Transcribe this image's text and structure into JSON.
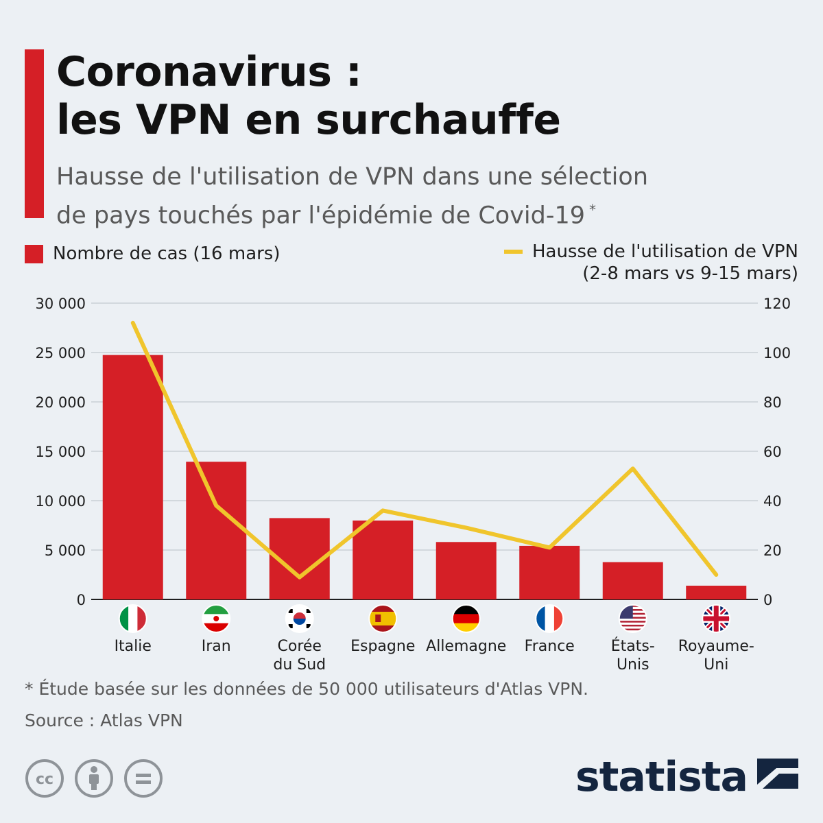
{
  "header": {
    "title_line1": "Coronavirus :",
    "title_line2": "les VPN en surchauffe",
    "subtitle_line1": "Hausse de l'utilisation de VPN dans une sélection",
    "subtitle_line2": "de pays touchés par l'épidémie de Covid-19",
    "subtitle_marker": "*"
  },
  "legend": {
    "bars_label": "Nombre de cas (16 mars)",
    "line_label": "Hausse de l'utilisation de VPN",
    "line_sublabel": "(2-8 mars vs 9-15 mars)"
  },
  "colors": {
    "bars": "#d51f26",
    "line": "#f0c52c",
    "accent": "#d51f26",
    "grid": "#b9bfc6",
    "brand": "#14253f"
  },
  "chart_data": {
    "type": "bar",
    "categories": [
      [
        "Italie"
      ],
      [
        "Iran"
      ],
      [
        "Corée",
        "du Sud"
      ],
      [
        "Espagne"
      ],
      [
        "Allemagne"
      ],
      [
        "France"
      ],
      [
        "États-",
        "Unis"
      ],
      [
        "Royaume-",
        "Uni"
      ]
    ],
    "flags": [
      "italy-flag-icon",
      "iran-flag-icon",
      "south-korea-flag-icon",
      "spain-flag-icon",
      "germany-flag-icon",
      "france-flag-icon",
      "usa-flag-icon",
      "uk-flag-icon"
    ],
    "series": [
      {
        "name": "Nombre de cas (16 mars)",
        "type": "bar",
        "axis": "left",
        "values": [
          24747,
          13938,
          8236,
          7988,
          5813,
          5423,
          3774,
          1391
        ]
      },
      {
        "name": "Hausse de l'utilisation de VPN",
        "type": "line",
        "axis": "right",
        "values": [
          112,
          38,
          9,
          36,
          29,
          21,
          53,
          10
        ]
      }
    ],
    "y_left": {
      "min": 0,
      "max": 30000,
      "ticks": [
        "0",
        "5 000",
        "10 000",
        "15 000",
        "20 000",
        "25 000",
        "30 000"
      ]
    },
    "y_right": {
      "min": 0,
      "max": 120,
      "ticks": [
        "0",
        "20",
        "40",
        "60",
        "80",
        "100",
        "120"
      ]
    },
    "grid": true
  },
  "footer": {
    "footnote": "* Étude basée sur les données de 50 000 utilisateurs d'Atlas VPN.",
    "source": "Source : Atlas VPN",
    "brand": "statista",
    "license_icons": [
      "cc-icon",
      "attribution-icon",
      "no-derivatives-icon"
    ]
  }
}
